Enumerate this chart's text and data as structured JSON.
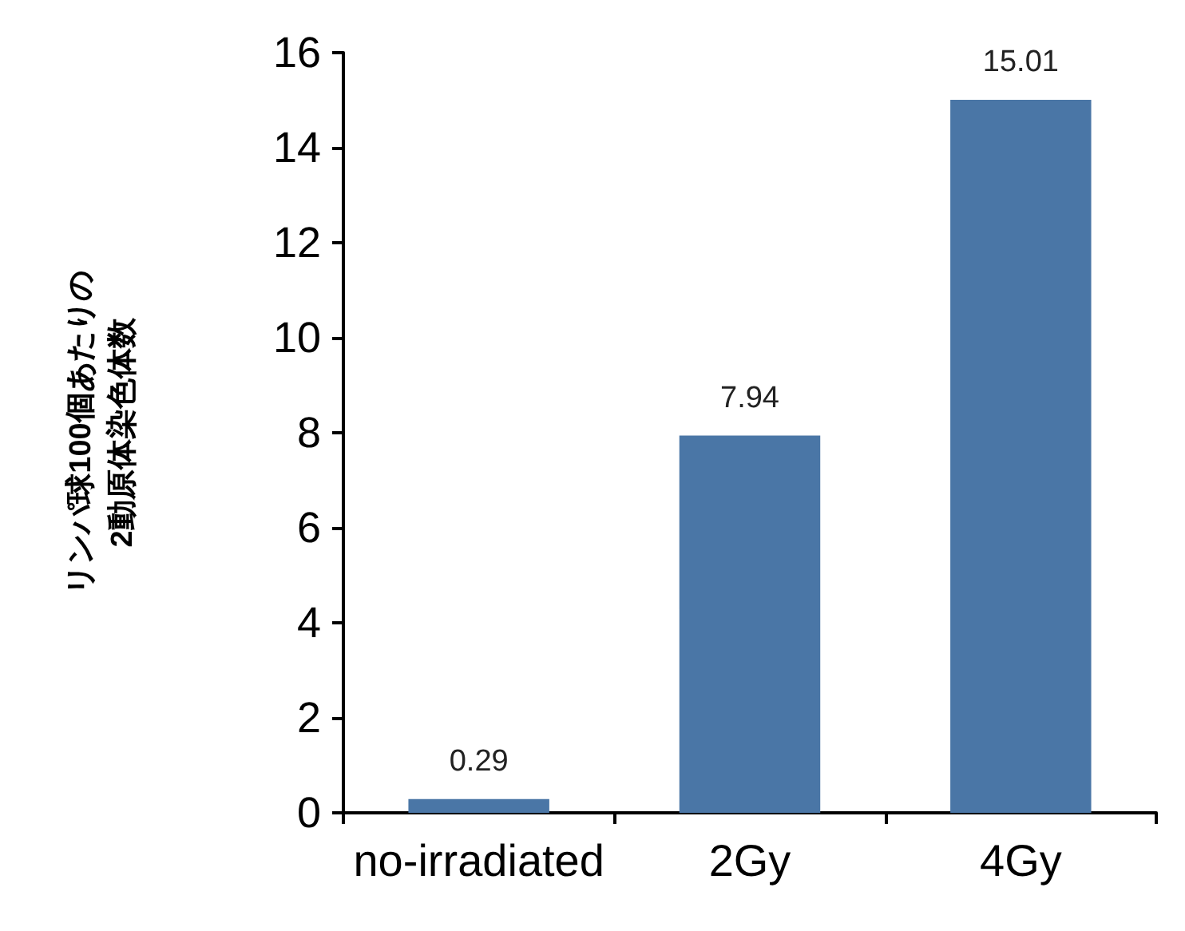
{
  "chart_data": {
    "type": "bar",
    "ylabel": "リンパ球100個あたりの\n2動原体染色体数",
    "categories": [
      "no-irradiated",
      "2Gy",
      "4Gy"
    ],
    "values": [
      0.29,
      7.94,
      15.01
    ],
    "color": "#4a76a6",
    "ylim": [
      0,
      16
    ],
    "yticks": [
      0,
      2,
      4,
      6,
      8,
      10,
      12,
      14,
      16
    ],
    "data_labels": true,
    "grid": false
  }
}
